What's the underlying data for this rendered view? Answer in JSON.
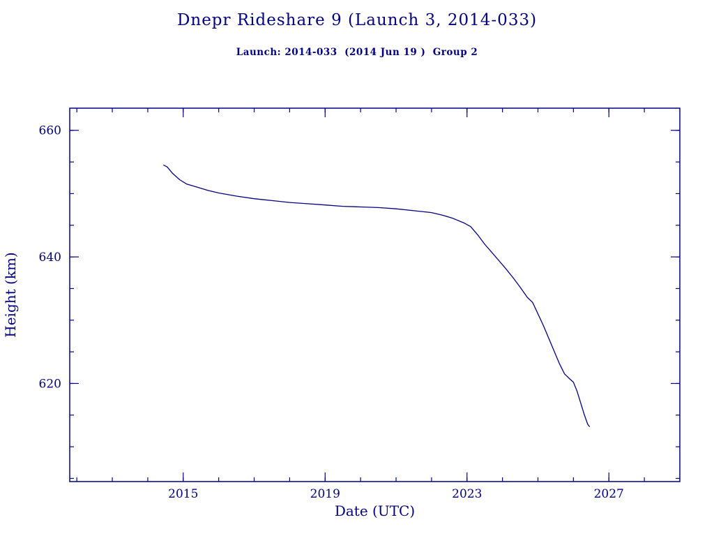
{
  "page": {
    "background_color": "#ffffff",
    "accent_color": "#000080"
  },
  "chart_data": {
    "type": "line",
    "title": "Dnepr Rideshare 9 (Launch 3, 2014-033)",
    "subtitle": "Launch: 2014-033  (2014 Jun 19 )  Group 2",
    "xlabel": "Date (UTC)",
    "ylabel": "Height (km)",
    "xlim": [
      2011.8,
      2029.0
    ],
    "ylim": [
      604.5,
      663.5
    ],
    "x_major_ticks": [
      2015,
      2019,
      2023,
      2027
    ],
    "x_minor_step": 1,
    "y_major_ticks": [
      620,
      640,
      660
    ],
    "y_minor_step": 5,
    "grid": false,
    "legend": "none",
    "line_color": "#000080",
    "series": [
      {
        "name": "height_km",
        "x": [
          2014.45,
          2014.55,
          2014.7,
          2014.9,
          2015.1,
          2015.4,
          2015.7,
          2016.0,
          2016.5,
          2017.0,
          2017.5,
          2018.0,
          2018.5,
          2019.0,
          2019.5,
          2020.0,
          2020.5,
          2021.0,
          2021.5,
          2022.0,
          2022.3,
          2022.6,
          2022.9,
          2023.1,
          2023.3,
          2023.5,
          2023.7,
          2023.9,
          2024.1,
          2024.3,
          2024.5,
          2024.7,
          2024.85,
          2025.0,
          2025.15,
          2025.3,
          2025.45,
          2025.6,
          2025.75,
          2025.9,
          2026.0,
          2026.1,
          2026.2,
          2026.3,
          2026.4,
          2026.45
        ],
        "y": [
          654.5,
          654.2,
          653.2,
          652.2,
          651.5,
          651.0,
          650.5,
          650.1,
          649.6,
          649.2,
          648.9,
          648.6,
          648.4,
          648.2,
          648.0,
          647.9,
          647.8,
          647.6,
          647.3,
          647.0,
          646.6,
          646.1,
          645.4,
          644.8,
          643.5,
          642.0,
          640.7,
          639.4,
          638.1,
          636.7,
          635.2,
          633.6,
          632.8,
          631.0,
          629.2,
          627.2,
          625.2,
          623.2,
          621.5,
          620.7,
          620.2,
          618.8,
          617.0,
          615.2,
          613.6,
          613.2
        ]
      }
    ]
  }
}
